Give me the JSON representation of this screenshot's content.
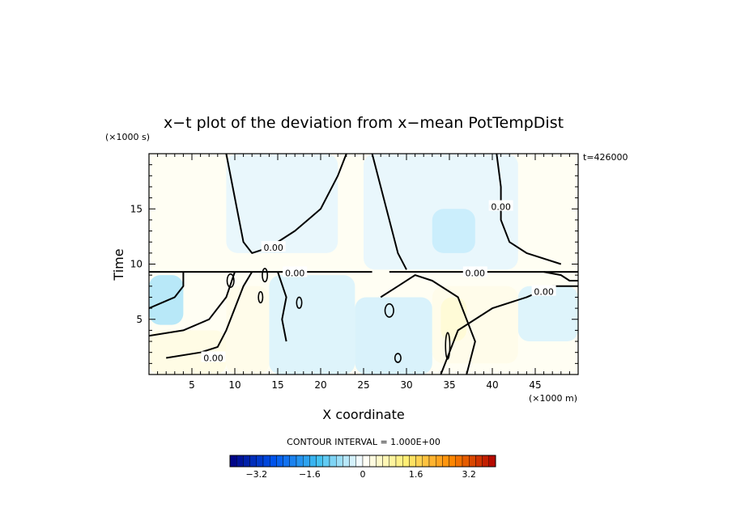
{
  "chart_data": {
    "type": "heatmap",
    "title": "x−t plot of the deviation from x−mean PotTempDist",
    "xlabel": "X coordinate",
    "ylabel": "Time",
    "x_unit_label": "(×1000 m)",
    "y_unit_label": "(×1000 s)",
    "time_stamp": "t=426000",
    "contour_interval_label": "CONTOUR INTERVAL = 1.000E+00",
    "xlim": [
      0,
      50
    ],
    "ylim": [
      0,
      20
    ],
    "x_ticks": [
      5,
      10,
      15,
      20,
      25,
      30,
      35,
      40,
      45
    ],
    "x_tick_labels": [
      "5",
      "10",
      "15",
      "20",
      "25",
      "30",
      "35",
      "40",
      "45"
    ],
    "y_ticks": [
      5,
      10,
      15
    ],
    "y_tick_labels": [
      "5",
      "10",
      "15"
    ],
    "contour_labels": [
      {
        "text": "0.00",
        "x": 14.5,
        "y": 11.5
      },
      {
        "text": "0.00",
        "x": 17.0,
        "y": 9.2
      },
      {
        "text": "0.00",
        "x": 7.5,
        "y": 1.5
      },
      {
        "text": "0.00",
        "x": 38.0,
        "y": 9.2
      },
      {
        "text": "0.00",
        "x": 41.0,
        "y": 15.2
      },
      {
        "text": "0.00",
        "x": 46.0,
        "y": 7.5
      }
    ],
    "colorbar": {
      "min": -4.0,
      "max": 4.0,
      "step": 0.2,
      "tick_values": [
        -3.2,
        -1.6,
        0,
        1.6,
        3.2
      ],
      "tick_labels": [
        "−3.2",
        "−1.6",
        "0",
        "1.6",
        "3.2"
      ],
      "color_stops": [
        "#000080",
        "#0055ee",
        "#40c0f0",
        "#ffffff",
        "#ffee70",
        "#ff8800",
        "#b00000"
      ]
    },
    "regions": [
      {
        "value": 0.25,
        "x0": 0,
        "x1": 50,
        "y0": 0,
        "y1": 20
      },
      {
        "value": -0.4,
        "x0": 9,
        "x1": 22,
        "y0": 11,
        "y1": 20
      },
      {
        "value": -0.4,
        "x0": 25,
        "x1": 43,
        "y0": 9.5,
        "y1": 20
      },
      {
        "value": -0.9,
        "x0": 33,
        "x1": 38,
        "y0": 11,
        "y1": 15
      },
      {
        "value": -0.6,
        "x0": 14,
        "x1": 24,
        "y0": 0,
        "y1": 9
      },
      {
        "value": -0.7,
        "x0": 24,
        "x1": 33,
        "y0": 0,
        "y1": 7
      },
      {
        "value": -0.6,
        "x0": 43,
        "x1": 50,
        "y0": 3,
        "y1": 8
      },
      {
        "value": -1.3,
        "x0": 0,
        "x1": 4,
        "y0": 4.5,
        "y1": 9
      },
      {
        "value": 0.6,
        "x0": 0,
        "x1": 9,
        "y0": 0,
        "y1": 4
      },
      {
        "value": 0.5,
        "x0": 33,
        "x1": 43,
        "y0": 1,
        "y1": 8
      },
      {
        "value": 0.9,
        "x0": 34,
        "x1": 37,
        "y0": 3,
        "y1": 7
      },
      {
        "value": 0.5,
        "x0": 9,
        "x1": 14,
        "y0": 0,
        "y1": 8
      }
    ],
    "zero_contours": [
      [
        [
          9,
          20
        ],
        [
          10,
          16
        ],
        [
          11,
          12
        ],
        [
          12,
          11
        ],
        [
          14,
          11.5
        ],
        [
          17,
          13
        ],
        [
          20,
          15
        ],
        [
          22,
          18
        ],
        [
          23,
          20
        ]
      ],
      [
        [
          26,
          20
        ],
        [
          27,
          17
        ],
        [
          28,
          14
        ],
        [
          29,
          11
        ],
        [
          30,
          9.5
        ]
      ],
      [
        [
          40.5,
          20
        ],
        [
          41,
          17
        ],
        [
          41,
          14
        ],
        [
          42,
          12
        ],
        [
          44,
          11
        ],
        [
          48,
          10
        ]
      ],
      [
        [
          0,
          9.3
        ],
        [
          26,
          9.3
        ]
      ],
      [
        [
          28,
          9.3
        ],
        [
          50,
          9.3
        ]
      ],
      [
        [
          0,
          3.5
        ],
        [
          4,
          4
        ],
        [
          7,
          5
        ],
        [
          9,
          7
        ],
        [
          10,
          9.3
        ]
      ],
      [
        [
          2,
          1.5
        ],
        [
          6,
          2
        ],
        [
          8,
          2.5
        ],
        [
          9,
          4
        ],
        [
          10,
          6
        ],
        [
          11,
          8
        ],
        [
          12,
          9.3
        ]
      ],
      [
        [
          15,
          9.3
        ],
        [
          16,
          7
        ],
        [
          15.5,
          5
        ],
        [
          16,
          3
        ]
      ],
      [
        [
          27,
          7
        ],
        [
          29,
          8
        ],
        [
          31,
          9
        ],
        [
          33,
          8.5
        ],
        [
          36,
          7
        ],
        [
          37,
          5
        ],
        [
          38,
          3
        ],
        [
          37,
          0
        ]
      ],
      [
        [
          34,
          0
        ],
        [
          35,
          2
        ],
        [
          36,
          4
        ],
        [
          40,
          6
        ],
        [
          44,
          7
        ],
        [
          47,
          8
        ],
        [
          50,
          8
        ]
      ],
      [
        [
          46,
          9.3
        ],
        [
          48,
          9
        ],
        [
          49,
          8.5
        ],
        [
          50,
          8.5
        ]
      ],
      [
        [
          0,
          6
        ],
        [
          3,
          7
        ],
        [
          4,
          8
        ],
        [
          4,
          9.3
        ]
      ]
    ],
    "small_closed_contours": [
      {
        "x": 13.5,
        "y": 9.0,
        "rx": 0.3,
        "ry": 0.6
      },
      {
        "x": 13.0,
        "y": 7.0,
        "rx": 0.25,
        "ry": 0.5
      },
      {
        "x": 17.5,
        "y": 6.5,
        "rx": 0.3,
        "ry": 0.5
      },
      {
        "x": 28.0,
        "y": 5.8,
        "rx": 0.5,
        "ry": 0.6
      },
      {
        "x": 29.0,
        "y": 1.5,
        "rx": 0.35,
        "ry": 0.4
      },
      {
        "x": 34.8,
        "y": 2.6,
        "rx": 0.25,
        "ry": 1.2
      },
      {
        "x": 9.5,
        "y": 8.5,
        "rx": 0.4,
        "ry": 0.6
      }
    ]
  }
}
